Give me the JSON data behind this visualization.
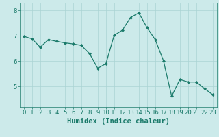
{
  "x": [
    0,
    1,
    2,
    3,
    4,
    5,
    6,
    7,
    8,
    9,
    10,
    11,
    12,
    13,
    14,
    15,
    16,
    17,
    18,
    19,
    20,
    21,
    22,
    23
  ],
  "y": [
    6.98,
    6.88,
    6.55,
    6.85,
    6.78,
    6.72,
    6.68,
    6.62,
    6.3,
    5.72,
    5.9,
    7.02,
    7.22,
    7.72,
    7.9,
    7.32,
    6.85,
    6.02,
    4.62,
    5.28,
    5.18,
    5.18,
    4.92,
    4.68
  ],
  "line_color": "#1a7a6a",
  "marker": "D",
  "marker_size": 2.0,
  "bg_color": "#cceaea",
  "grid_color": "#aad4d4",
  "xlabel": "Humidex (Indice chaleur)",
  "ylim": [
    4.2,
    8.3
  ],
  "xlim": [
    -0.5,
    23.5
  ],
  "yticks": [
    5,
    6,
    7,
    8
  ],
  "xticks": [
    0,
    1,
    2,
    3,
    4,
    5,
    6,
    7,
    8,
    9,
    10,
    11,
    12,
    13,
    14,
    15,
    16,
    17,
    18,
    19,
    20,
    21,
    22,
    23
  ],
  "tick_color": "#1a7a6a",
  "label_color": "#1a7a6a",
  "font_size_xlabel": 7.5,
  "font_size_ticks": 6.5
}
